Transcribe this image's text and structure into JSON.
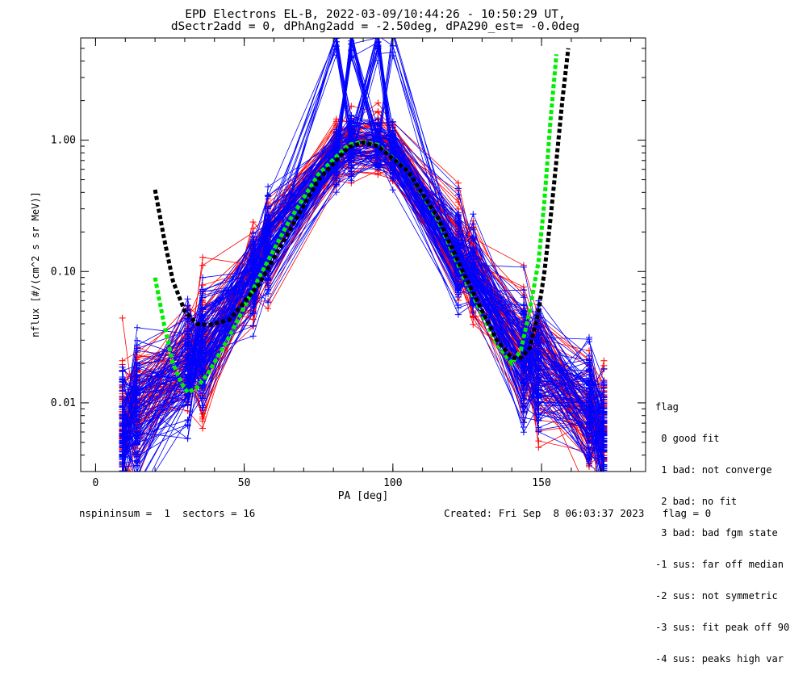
{
  "chart_data": {
    "type": "line",
    "title": "EPD Electrons EL-B, 2022-03-09/10:44:26 - 10:50:29 UT,",
    "subtitle": "dSectr2add = 0, dPhAng2add = -2.50deg, dPA290_est=  -0.0deg",
    "xlabel": "PA [deg]",
    "ylabel": "nflux [#/(cm^2 s sr MeV)]",
    "xlim": [
      -5,
      185
    ],
    "ylim": [
      0.003,
      6.0
    ],
    "yscale": "log",
    "x_ticks": [
      {
        "value": 0,
        "label": "0"
      },
      {
        "value": 50,
        "label": "50"
      },
      {
        "value": 100,
        "label": "100"
      },
      {
        "value": 150,
        "label": "150"
      }
    ],
    "y_ticks": [
      {
        "value": 0.01,
        "label": "0.01"
      },
      {
        "value": 0.1,
        "label": "0.10"
      },
      {
        "value": 1.0,
        "label": "1.00"
      }
    ],
    "data_pitch_angles": [
      9,
      14,
      31,
      36,
      53,
      58,
      81,
      86,
      95,
      100,
      122,
      127,
      144,
      149,
      166,
      171
    ],
    "median_profile": [
      0.006,
      0.009,
      0.02,
      0.025,
      0.1,
      0.16,
      0.8,
      0.95,
      0.95,
      0.8,
      0.14,
      0.1,
      0.025,
      0.02,
      0.009,
      0.006
    ],
    "series": [
      {
        "color": "#00ee00",
        "style": "dashed",
        "x": [
          20,
          23,
          26,
          29,
          31,
          34,
          38,
          45,
          55,
          65,
          75,
          85,
          90,
          95,
          105,
          115,
          125,
          135,
          140,
          143,
          146,
          149,
          151,
          153,
          155
        ],
        "y": [
          0.09,
          0.04,
          0.02,
          0.014,
          0.012,
          0.013,
          0.017,
          0.032,
          0.09,
          0.24,
          0.55,
          0.92,
          0.97,
          0.92,
          0.58,
          0.25,
          0.08,
          0.028,
          0.02,
          0.025,
          0.05,
          0.12,
          0.35,
          1.4,
          4.5
        ]
      },
      {
        "color": "#000000",
        "style": "dashed",
        "x": [
          20,
          23,
          26,
          30,
          34,
          38,
          45,
          55,
          65,
          75,
          85,
          90,
          95,
          105,
          115,
          125,
          135,
          140,
          143,
          146,
          149,
          151,
          153,
          155,
          157,
          159
        ],
        "y": [
          0.42,
          0.18,
          0.085,
          0.05,
          0.04,
          0.039,
          0.043,
          0.08,
          0.2,
          0.5,
          0.88,
          0.96,
          0.9,
          0.58,
          0.26,
          0.085,
          0.03,
          0.022,
          0.022,
          0.026,
          0.05,
          0.1,
          0.25,
          0.7,
          2.0,
          5.0
        ]
      }
    ],
    "legend_placement": "bottom-right, outside plot",
    "grid": false
  },
  "legend": {
    "title": "flag",
    "items": [
      " 0 good fit",
      " 1 bad: not converge",
      " 2 bad: no fit",
      " 3 bad: bad fgm state",
      "-1 sus: far off median",
      "-2 sus: not symmetric",
      "-3 sus: fit peak off 90",
      "-4 sus: peaks high var"
    ]
  },
  "footer": {
    "left": "nspininsum =  1  sectors = 16",
    "right": "Created: Fri Sep  8 06:03:37 2023   flag = 0"
  },
  "colors": {
    "red": "#ff0000",
    "blue": "#0000ff",
    "fit_green": "#00ee00",
    "fit_black": "#000000"
  }
}
